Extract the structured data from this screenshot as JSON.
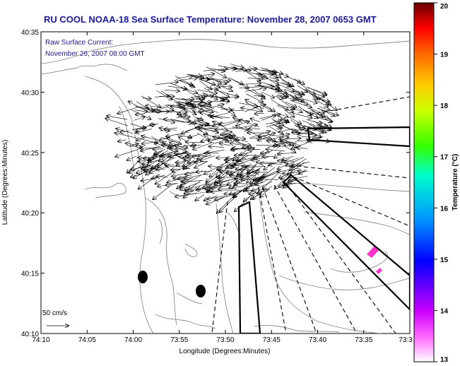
{
  "title": "RU COOL  NOAA-18  Sea Surface Temperature:  November 28, 2007 0653 GMT",
  "annotation": {
    "line1": "Raw Surface Current:",
    "line2": "November 26, 2007 08:00 GMT"
  },
  "axes": {
    "xlabel": "Longitude (Degrees:Minutes)",
    "ylabel": "Latitude (Degrees:Minutes)",
    "x_ticks": [
      "74:10",
      "74:05",
      "74:00",
      "73:55",
      "73:50",
      "73:45",
      "73:40",
      "73:35",
      "73:3"
    ],
    "y_ticks": [
      "40:35",
      "40:30",
      "40:25",
      "40:20",
      "40:15",
      "40:10"
    ]
  },
  "colorbar": {
    "label": "Temperature (°C)",
    "ticks": [
      "20",
      "19",
      "18",
      "17",
      "16",
      "15",
      "14",
      "13"
    ],
    "min": 13,
    "max": 20
  },
  "scale_vector": {
    "label": "50 cm/s"
  },
  "colors": {
    "title": "#1a1a99",
    "annotation": "#1a1a99",
    "contours": "#808080",
    "vectors": "#000000",
    "sst_patches": "#ff33cc"
  },
  "map_elements": {
    "sst_observations": "magenta pixels near 40:16N 73:35W",
    "markers": "two black filled ellipses (buoys) near 40:14N 73:58W and 73:53W"
  }
}
